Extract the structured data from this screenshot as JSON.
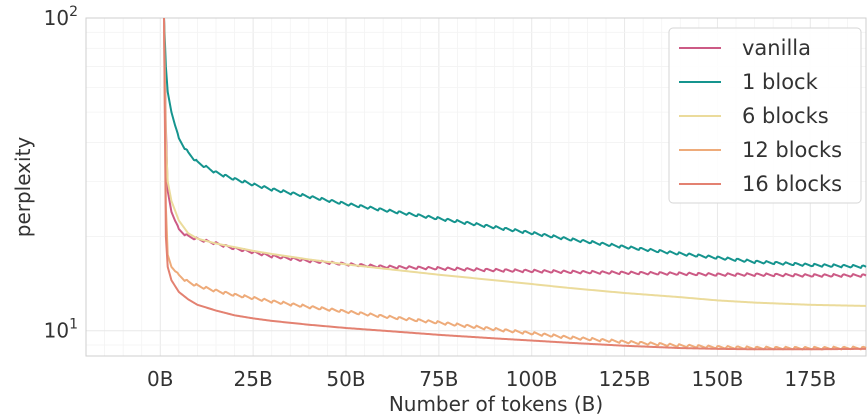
{
  "chart_data": {
    "type": "line",
    "title": "",
    "xlabel": "Number of tokens (B)",
    "ylabel": "perplexity",
    "yscale": "log",
    "xlim": [
      -20,
      190
    ],
    "ylim": [
      8.3,
      100
    ],
    "x_ticks": [
      0,
      25,
      50,
      75,
      100,
      125,
      150,
      175
    ],
    "x_tick_labels": [
      "0B",
      "25B",
      "50B",
      "75B",
      "100B",
      "125B",
      "150B",
      "175B"
    ],
    "y_ticks": [
      10,
      100
    ],
    "y_tick_labels": [
      {
        "base": "10",
        "exp": "1"
      },
      {
        "base": "10",
        "exp": "2"
      }
    ],
    "grid": true,
    "legend_position": "top-right",
    "x": [
      1,
      1.5,
      2,
      3,
      5,
      7.5,
      10,
      15,
      20,
      25,
      30,
      40,
      50,
      60,
      75,
      90,
      100,
      110,
      125,
      140,
      150,
      160,
      175,
      190
    ],
    "series": [
      {
        "name": "vanilla",
        "color": "#cc5a85",
        "wiggle": true,
        "values": [
          100,
          45,
          28,
          24,
          21,
          20,
          19.6,
          19,
          18.3,
          17.8,
          17.3,
          16.7,
          16.3,
          16.0,
          15.8,
          15.6,
          15.5,
          15.4,
          15.3,
          15.2,
          15.1,
          15.1,
          15.0,
          15.0
        ]
      },
      {
        "name": "1 block",
        "color": "#15948e",
        "wiggle": true,
        "values": [
          100,
          70,
          58,
          50,
          41,
          37,
          34.5,
          32,
          30.5,
          29.3,
          28.3,
          26.8,
          25.4,
          24.3,
          22.8,
          21.4,
          20.5,
          19.6,
          18.5,
          17.6,
          17.1,
          16.6,
          16.2,
          16.0
        ]
      },
      {
        "name": "6 blocks",
        "color": "#ebdb9b",
        "wiggle": false,
        "values": [
          100,
          40,
          30,
          26,
          22.5,
          20.5,
          19.7,
          19,
          18.5,
          18.0,
          17.6,
          16.9,
          16.3,
          15.8,
          15.1,
          14.5,
          14.1,
          13.7,
          13.2,
          12.8,
          12.5,
          12.3,
          12.1,
          12.0
        ]
      },
      {
        "name": "12 blocks",
        "color": "#eeab7a",
        "wiggle": true,
        "values": [
          100,
          25,
          17.5,
          16,
          15,
          14.3,
          13.9,
          13.4,
          13.0,
          12.7,
          12.4,
          11.9,
          11.5,
          11.1,
          10.6,
          10.1,
          9.8,
          9.5,
          9.2,
          8.95,
          8.85,
          8.8,
          8.78,
          8.8
        ]
      },
      {
        "name": "16 blocks",
        "color": "#e38171",
        "wiggle": false,
        "values": [
          100,
          20,
          16,
          14.5,
          13.3,
          12.6,
          12.1,
          11.6,
          11.2,
          10.95,
          10.75,
          10.45,
          10.2,
          10.0,
          9.7,
          9.45,
          9.3,
          9.15,
          8.95,
          8.8,
          8.75,
          8.72,
          8.72,
          8.75
        ]
      }
    ]
  }
}
